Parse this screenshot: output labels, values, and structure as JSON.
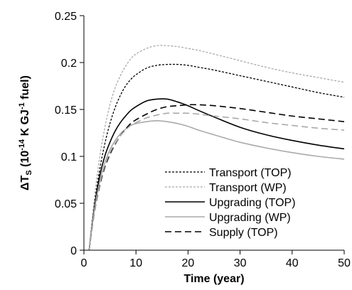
{
  "chart_data": {
    "type": "line",
    "title": "",
    "xlabel": "Time (year)",
    "ylabel_parts": {
      "delta": "Δ",
      "t": "T",
      "sub": "S",
      "open": " (10",
      "exp1": "-14",
      "mid": " K GJ",
      "exp2": "-1",
      "close": " fuel)"
    },
    "xlim": [
      0,
      50
    ],
    "ylim": [
      0,
      0.25
    ],
    "xticks": [
      0,
      10,
      20,
      30,
      40,
      50
    ],
    "yticks": [
      "0",
      "0.05",
      "0.1",
      "0.15",
      "0.2",
      "0.25"
    ],
    "ytick_values": [
      0,
      0.05,
      0.1,
      0.15,
      0.2,
      0.25
    ],
    "grid": false,
    "legend_position": "bottom-right",
    "series": [
      {
        "name": "Transport (TOP)",
        "color": "#000000",
        "dash": "dotted",
        "x": [
          1,
          2,
          3,
          4,
          5,
          6,
          7,
          8,
          9,
          10,
          12,
          14,
          16,
          18,
          20,
          22,
          25,
          30,
          35,
          40,
          45,
          50
        ],
        "y": [
          0,
          0.048,
          0.085,
          0.113,
          0.135,
          0.152,
          0.165,
          0.175,
          0.182,
          0.187,
          0.194,
          0.197,
          0.198,
          0.198,
          0.197,
          0.195,
          0.192,
          0.186,
          0.18,
          0.174,
          0.168,
          0.163
        ]
      },
      {
        "name": "Transport (WP)",
        "color": "#aaaaaa",
        "dash": "dotted",
        "x": [
          1,
          2,
          3,
          4,
          5,
          6,
          7,
          8,
          9,
          10,
          12,
          14,
          16,
          18,
          20,
          22,
          25,
          30,
          35,
          40,
          45,
          50
        ],
        "y": [
          0,
          0.055,
          0.098,
          0.13,
          0.155,
          0.173,
          0.186,
          0.196,
          0.204,
          0.209,
          0.215,
          0.218,
          0.218,
          0.217,
          0.215,
          0.213,
          0.209,
          0.202,
          0.195,
          0.189,
          0.184,
          0.179
        ]
      },
      {
        "name": "Upgrading (TOP)",
        "color": "#000000",
        "dash": "solid",
        "x": [
          1,
          2,
          3,
          4,
          5,
          6,
          7,
          8,
          9,
          10,
          12,
          14,
          16,
          18,
          20,
          22,
          25,
          30,
          35,
          40,
          45,
          50
        ],
        "y": [
          0,
          0.045,
          0.078,
          0.1,
          0.115,
          0.127,
          0.136,
          0.143,
          0.149,
          0.153,
          0.159,
          0.161,
          0.161,
          0.158,
          0.154,
          0.149,
          0.142,
          0.131,
          0.123,
          0.117,
          0.112,
          0.108
        ]
      },
      {
        "name": "Upgrading (WP)",
        "color": "#aaaaaa",
        "dash": "solid",
        "x": [
          1,
          2,
          3,
          4,
          5,
          6,
          7,
          8,
          9,
          10,
          12,
          14,
          16,
          18,
          20,
          22,
          25,
          30,
          35,
          40,
          45,
          50
        ],
        "y": [
          0,
          0.042,
          0.072,
          0.093,
          0.107,
          0.117,
          0.124,
          0.129,
          0.133,
          0.135,
          0.137,
          0.138,
          0.137,
          0.135,
          0.132,
          0.128,
          0.123,
          0.115,
          0.109,
          0.104,
          0.1,
          0.097
        ]
      },
      {
        "name": "Supply (TOP)",
        "color": "#000000",
        "dash": "dashed",
        "x": [
          1,
          2,
          3,
          4,
          5,
          6,
          7,
          8,
          9,
          10,
          12,
          14,
          16,
          18,
          20,
          22,
          25,
          30,
          35,
          40,
          45,
          50
        ],
        "y": [
          0,
          0.04,
          0.068,
          0.088,
          0.102,
          0.113,
          0.122,
          0.129,
          0.135,
          0.139,
          0.145,
          0.15,
          0.153,
          0.154,
          0.155,
          0.155,
          0.154,
          0.151,
          0.147,
          0.143,
          0.14,
          0.137
        ]
      },
      {
        "name": "",
        "color": "#aaaaaa",
        "dash": "dashed",
        "x": [
          1,
          2,
          3,
          4,
          5,
          6,
          7,
          8,
          9,
          10,
          12,
          14,
          16,
          18,
          20,
          22,
          25,
          30,
          35,
          40,
          45,
          50
        ],
        "y": [
          0,
          0.041,
          0.07,
          0.09,
          0.104,
          0.114,
          0.122,
          0.128,
          0.133,
          0.136,
          0.141,
          0.144,
          0.146,
          0.146,
          0.146,
          0.145,
          0.143,
          0.14,
          0.136,
          0.133,
          0.13,
          0.128
        ]
      }
    ]
  }
}
